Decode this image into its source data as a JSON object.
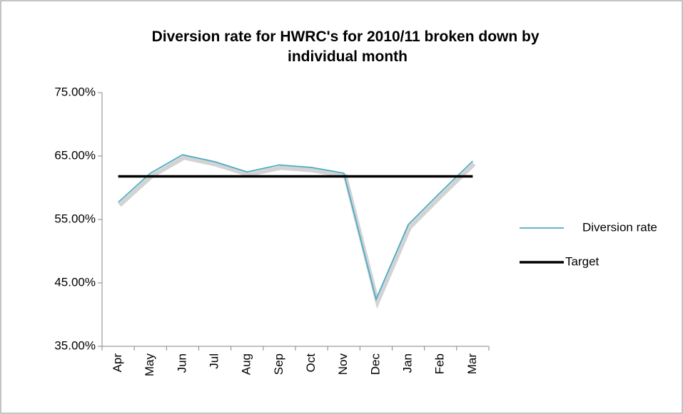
{
  "chart_data": {
    "type": "line",
    "title": "Diversion rate for HWRC's for 2010/11 broken down by individual month",
    "categories": [
      "Apr",
      "May",
      "Jun",
      "Jul",
      "Aug",
      "Sep",
      "Oct",
      "Nov",
      "Dec",
      "Jan",
      "Feb",
      "Mar"
    ],
    "series": [
      {
        "name": "Diversion rate",
        "color": "#4bacc6",
        "values": [
          57.7,
          62.3,
          65.2,
          64.1,
          62.5,
          63.6,
          63.2,
          62.3,
          42.4,
          54.2,
          59.3,
          64.2
        ]
      },
      {
        "name": "Target",
        "color": "#000000",
        "values": [
          61.8,
          61.8,
          61.8,
          61.8,
          61.8,
          61.8,
          61.8,
          61.8,
          61.8,
          61.8,
          61.8,
          61.8
        ]
      }
    ],
    "ylim": [
      35,
      75
    ],
    "yticks": [
      {
        "value": 35,
        "label": "35.00%"
      },
      {
        "value": 45,
        "label": "45.00%"
      },
      {
        "value": 55,
        "label": "55.00%"
      },
      {
        "value": 65,
        "label": "65.00%"
      },
      {
        "value": 75,
        "label": "75.00%"
      }
    ],
    "legend": "right"
  }
}
